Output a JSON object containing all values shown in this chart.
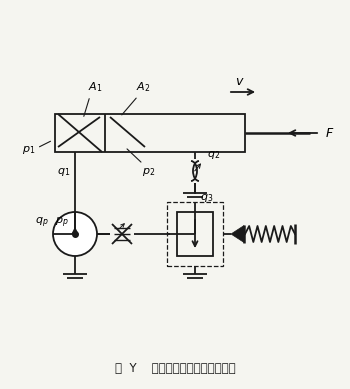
{
  "title": "图  Y    节流阀的出口节流调速回路",
  "bg_color": "#f5f5f0",
  "line_color": "#1a1a1a",
  "lw": 1.3
}
